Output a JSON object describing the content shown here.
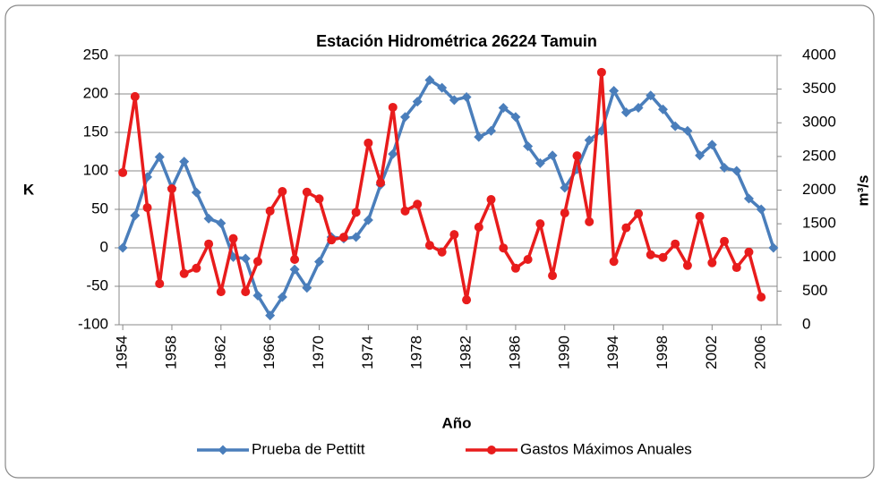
{
  "chart_data": {
    "type": "line",
    "title": "Estación Hidrométrica 26224 Tamuin",
    "x_label": "Año",
    "y_label": "K",
    "y2_label": "m³/s",
    "x": [
      1954,
      1955,
      1956,
      1957,
      1958,
      1959,
      1960,
      1961,
      1962,
      1963,
      1964,
      1965,
      1966,
      1967,
      1968,
      1969,
      1970,
      1971,
      1972,
      1973,
      1974,
      1975,
      1976,
      1977,
      1978,
      1979,
      1980,
      1981,
      1982,
      1983,
      1984,
      1985,
      1986,
      1987,
      1988,
      1989,
      1990,
      1991,
      1992,
      1993,
      1994,
      1995,
      1996,
      1997,
      1998,
      1999,
      2000,
      2001,
      2002,
      2003,
      2004,
      2005,
      2006,
      2007
    ],
    "series": [
      {
        "name": "Prueba de Pettitt",
        "color": "#4a7ebb",
        "marker": "diamond",
        "values": [
          0,
          42,
          92,
          118,
          78,
          112,
          72,
          38,
          32,
          -12,
          -14,
          -62,
          -88,
          -64,
          -28,
          -52,
          -18,
          14,
          12,
          14,
          36,
          82,
          122,
          170,
          190,
          218,
          208,
          192,
          196,
          144,
          152,
          182,
          170,
          132,
          110,
          120,
          78,
          102,
          140,
          152,
          204,
          176,
          182,
          198,
          180,
          158,
          152,
          120,
          134,
          104,
          100,
          64,
          50,
          0
        ]
      },
      {
        "name": "Gastos Máximos Anuales",
        "color": "#e81c1c",
        "marker": "circle",
        "axis": "y2",
        "values": [
          2260,
          3390,
          1740,
          610,
          2020,
          760,
          840,
          1200,
          490,
          1280,
          490,
          940,
          1690,
          1980,
          970,
          1970,
          1870,
          1260,
          1300,
          1670,
          2700,
          2110,
          3230,
          1690,
          1790,
          1180,
          1080,
          1340,
          370,
          1450,
          1860,
          1140,
          840,
          970,
          1500,
          730,
          1660,
          2510,
          1530,
          3750,
          940,
          1440,
          1650,
          1040,
          1000,
          1200,
          880,
          1610,
          920,
          1240,
          850,
          1080,
          410,
          null
        ]
      }
    ],
    "xlim": [
      1953.7,
      2007.3
    ],
    "xticks": [
      1954,
      1958,
      1962,
      1966,
      1970,
      1974,
      1978,
      1982,
      1986,
      1990,
      1994,
      1998,
      2002,
      2006
    ],
    "ylim": [
      -100,
      250
    ],
    "yticks": [
      -100,
      -50,
      0,
      50,
      100,
      150,
      200,
      250
    ],
    "y2lim": [
      0,
      4000
    ],
    "y2ticks": [
      0,
      500,
      1000,
      1500,
      2000,
      2500,
      3000,
      3500,
      4000
    ],
    "grid": true,
    "legend": "bottom"
  }
}
